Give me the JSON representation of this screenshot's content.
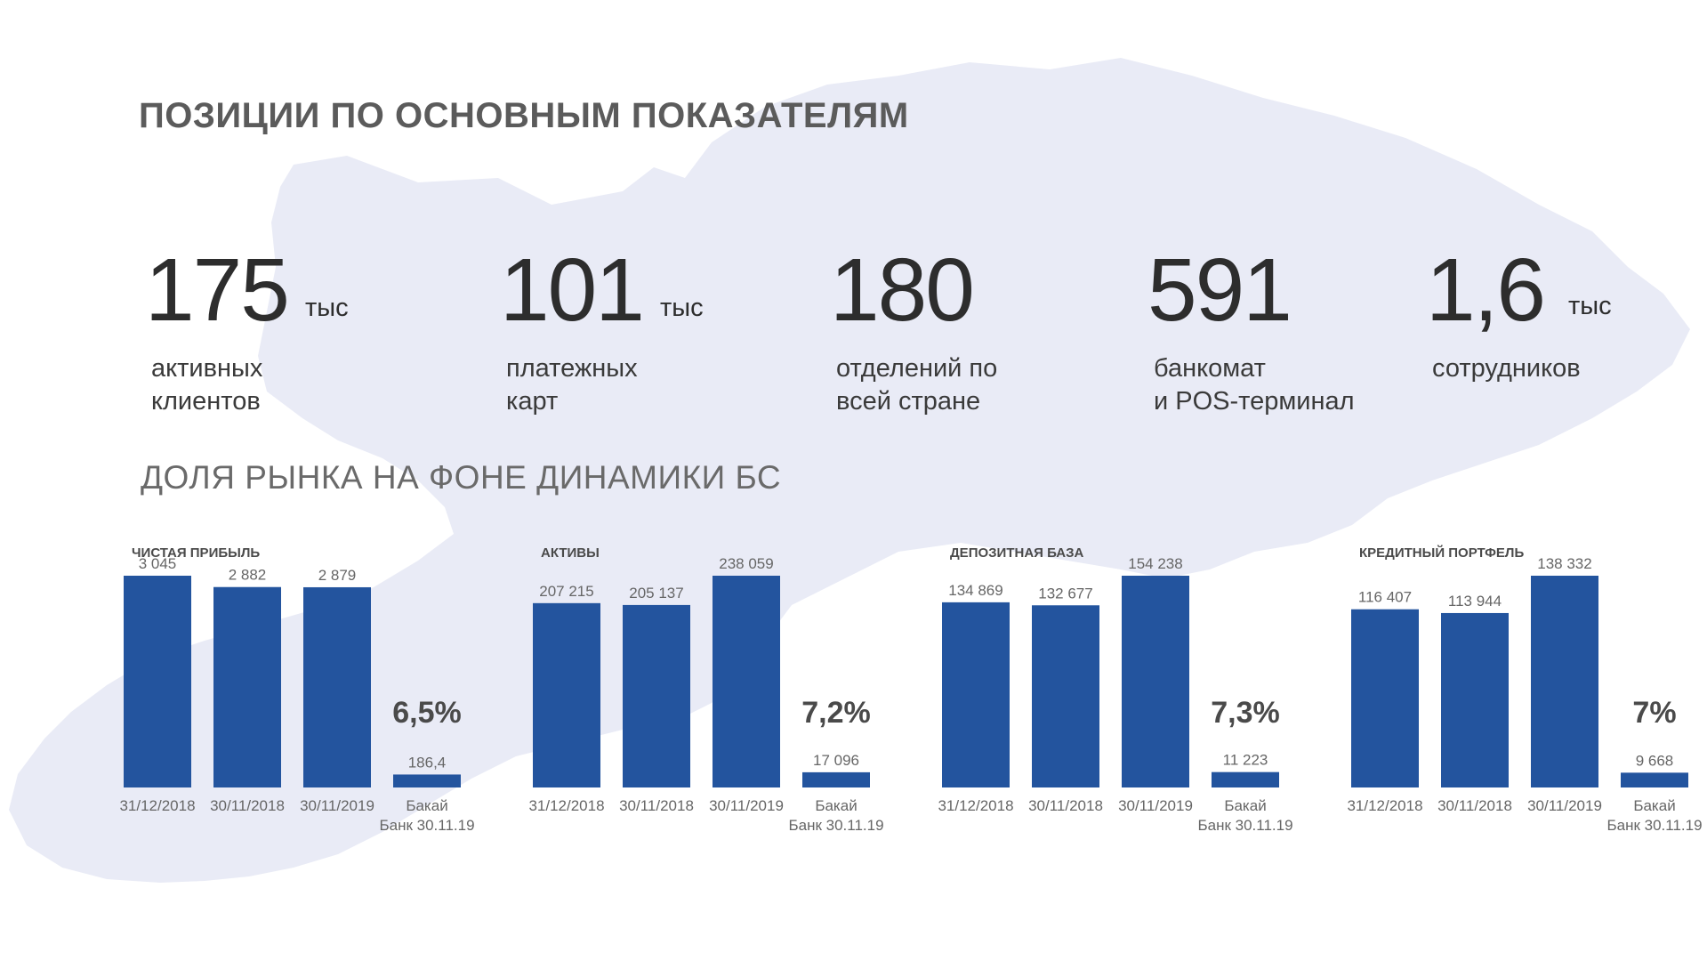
{
  "title": "ПОЗИЦИИ ПО ОСНОВНЫМ ПОКАЗАТЕЛЯМ",
  "subtitle": "ДОЛЯ РЫНКА НА ФОНЕ ДИНАМИКИ БС",
  "colors": {
    "bar": "#23549e",
    "map": "#e9ebf6",
    "text_dark": "#2d2d2d",
    "text_muted": "#6a6a6a"
  },
  "stats": [
    {
      "value": "175",
      "unit": "тыс",
      "label": "активных\nклиентов"
    },
    {
      "value": "101",
      "unit": "тыс",
      "label": "платежных\nкарт"
    },
    {
      "value": "180",
      "unit": "",
      "label": "отделений по\nвсей стране"
    },
    {
      "value": "591",
      "unit": "",
      "label": "банкомат\nи POS-терминал"
    },
    {
      "value": "1,6",
      "unit": "тыс",
      "label": "сотрудников"
    }
  ],
  "chart_data": [
    {
      "type": "bar",
      "title": "ЧИСТАЯ ПРИБЫЛЬ",
      "categories": [
        "31/12/2018",
        "30/11/2018",
        "30/11/2019",
        "Бакай\nБанк 30.11.19"
      ],
      "values": [
        3045,
        2882,
        2879,
        186.4
      ],
      "value_labels": [
        "3 045",
        "2 882",
        "2 879",
        "186,4"
      ],
      "share": "6,5%"
    },
    {
      "type": "bar",
      "title": "АКТИВЫ",
      "categories": [
        "31/12/2018",
        "30/11/2018",
        "30/11/2019",
        "Бакай\nБанк 30.11.19"
      ],
      "values": [
        207215,
        205137,
        238059,
        17096
      ],
      "value_labels": [
        "207 215",
        "205 137",
        "238 059",
        "17 096"
      ],
      "share": "7,2%"
    },
    {
      "type": "bar",
      "title": "ДЕПОЗИТНАЯ БАЗА",
      "categories": [
        "31/12/2018",
        "30/11/2018",
        "30/11/2019",
        "Бакай\nБанк 30.11.19"
      ],
      "values": [
        134869,
        132677,
        154238,
        11223
      ],
      "value_labels": [
        "134 869",
        "132 677",
        "154 238",
        "11 223"
      ],
      "share": "7,3%"
    },
    {
      "type": "bar",
      "title": "КРЕДИТНЫЙ ПОРТФЕЛЬ",
      "categories": [
        "31/12/2018",
        "30/11/2018",
        "30/11/2019",
        "Бакай\nБанк 30.11.19"
      ],
      "values": [
        116407,
        113944,
        138332,
        9668
      ],
      "value_labels": [
        "116 407",
        "113 944",
        "138 332",
        "9 668"
      ],
      "share": "7%"
    }
  ]
}
